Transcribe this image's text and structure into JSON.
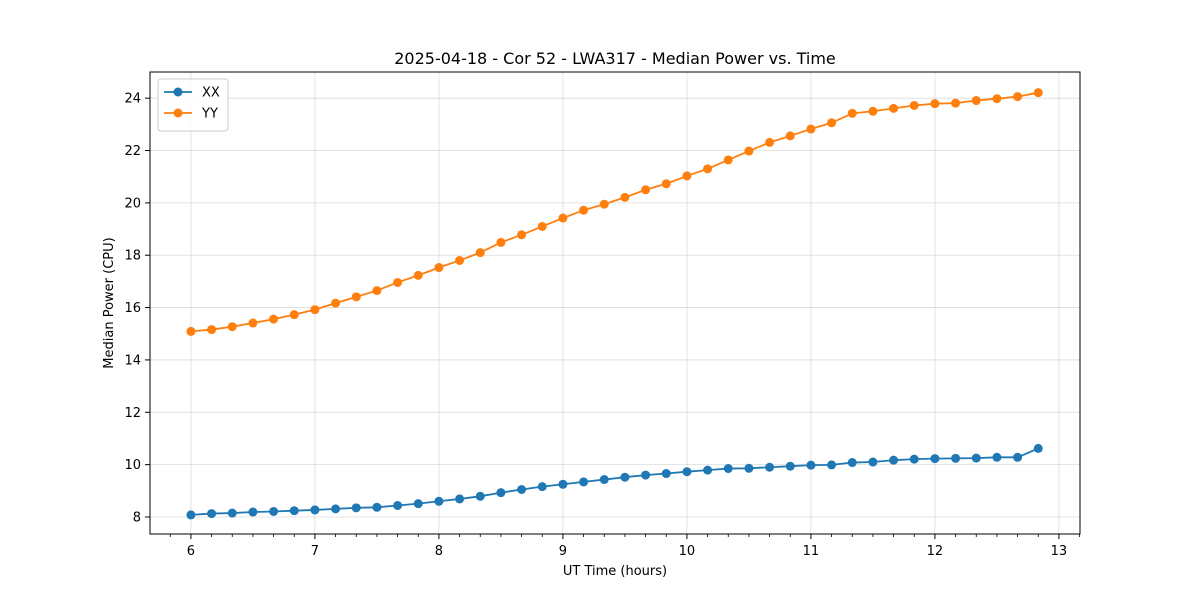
{
  "chart_data": {
    "type": "line",
    "title": "2025-04-18 - Cor 52 - LWA317 - Median Power vs. Time",
    "xlabel": "UT Time (hours)",
    "ylabel": "Median Power (CPU)",
    "xlim": [
      5.67,
      13.17
    ],
    "ylim": [
      7.35,
      25
    ],
    "xticks": [
      6,
      7,
      8,
      9,
      10,
      11,
      12,
      13
    ],
    "yticks": [
      8,
      10,
      12,
      14,
      16,
      18,
      20,
      22,
      24
    ],
    "xtick_labels": [
      "6",
      "7",
      "8",
      "9",
      "10",
      "11",
      "12",
      "13"
    ],
    "ytick_labels": [
      "8",
      "10",
      "12",
      "14",
      "16",
      "18",
      "20",
      "22",
      "24"
    ],
    "grid": true,
    "legend_position": "top-left",
    "x": [
      6.0,
      6.1667,
      6.3333,
      6.5,
      6.6667,
      6.8333,
      7.0,
      7.1667,
      7.3333,
      7.5,
      7.6667,
      7.8333,
      8.0,
      8.1667,
      8.3333,
      8.5,
      8.6667,
      8.8333,
      9.0,
      9.1667,
      9.3333,
      9.5,
      9.6667,
      9.8333,
      10.0,
      10.1667,
      10.3333,
      10.5,
      10.6667,
      10.8333,
      11.0,
      11.1667,
      11.3333,
      11.5,
      11.6667,
      11.8333,
      12.0,
      12.1667,
      12.3333,
      12.5,
      12.6667,
      12.8333
    ],
    "series": [
      {
        "name": "XX",
        "color": "#1f77b4",
        "values": [
          8.08,
          8.13,
          8.15,
          8.19,
          8.21,
          8.24,
          8.27,
          8.31,
          8.35,
          8.37,
          8.44,
          8.51,
          8.6,
          8.69,
          8.79,
          8.93,
          9.05,
          9.16,
          9.25,
          9.34,
          9.43,
          9.52,
          9.6,
          9.66,
          9.73,
          9.79,
          9.85,
          9.86,
          9.9,
          9.94,
          9.98,
          9.99,
          10.08,
          10.1,
          10.17,
          10.21,
          10.23,
          10.24,
          10.25,
          10.28,
          10.28,
          10.62
        ]
      },
      {
        "name": "YY",
        "color": "#ff7f0e",
        "values": [
          15.09,
          15.16,
          15.27,
          15.41,
          15.56,
          15.73,
          15.92,
          16.17,
          16.41,
          16.65,
          16.96,
          17.23,
          17.53,
          17.8,
          18.1,
          18.49,
          18.78,
          19.1,
          19.42,
          19.72,
          19.95,
          20.21,
          20.5,
          20.73,
          21.03,
          21.3,
          21.64,
          21.98,
          22.31,
          22.56,
          22.82,
          23.06,
          23.42,
          23.5,
          23.61,
          23.72,
          23.79,
          23.81,
          23.91,
          23.98,
          24.06,
          24.21
        ]
      }
    ]
  }
}
